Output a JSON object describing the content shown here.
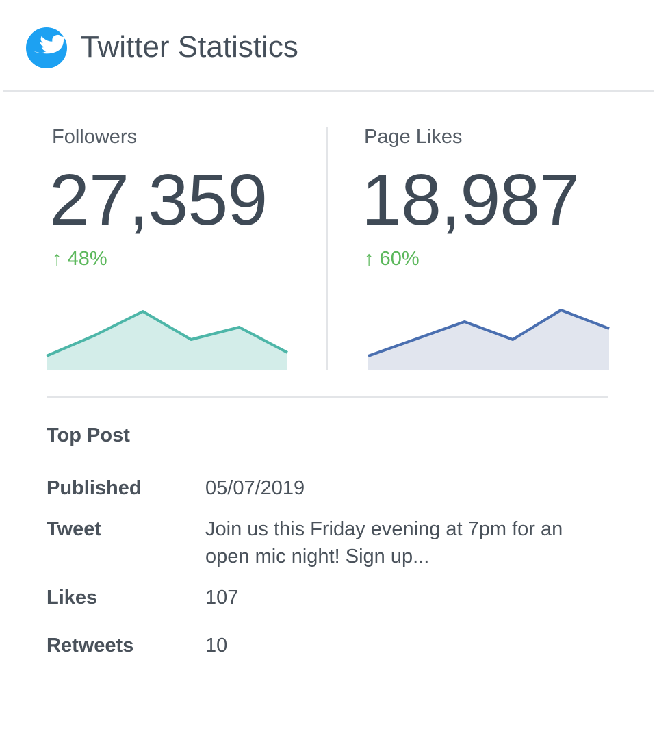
{
  "header": {
    "title": "Twitter Statistics"
  },
  "metrics": [
    {
      "label": "Followers",
      "value": "27,359",
      "change": "48%",
      "sparkline": [
        20,
        50,
        85,
        44,
        62,
        25
      ],
      "color": "#4db6a8",
      "fill": "#d3ede9"
    },
    {
      "label": "Page Likes",
      "value": "18,987",
      "change": "60%",
      "sparkline": [
        20,
        45,
        70,
        44,
        87,
        60
      ],
      "color": "#4a6fb0",
      "fill": "#e1e5ee"
    }
  ],
  "top_post": {
    "title": "Top Post",
    "rows": [
      [
        "Published",
        "05/07/2019"
      ],
      [
        "Tweet",
        "Join us this Friday evening at 7pm for an open mic night! Sign up..."
      ],
      [
        "Likes",
        "107"
      ],
      [
        "Retweets",
        "10"
      ]
    ]
  }
}
